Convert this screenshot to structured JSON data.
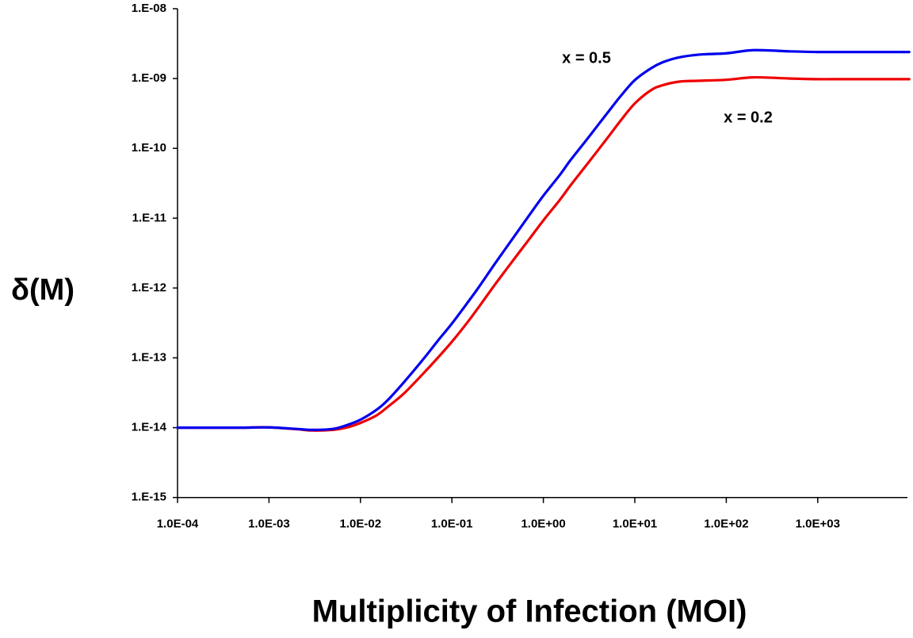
{
  "chart_data": {
    "type": "line",
    "title": "",
    "xlabel": "Multiplicity of Infection (MOI)",
    "ylabel": "δ(M)",
    "x_scale": "log",
    "y_scale": "log",
    "xlim": [
      0.0001,
      10000
    ],
    "ylim": [
      1e-15,
      1e-08
    ],
    "grid": false,
    "legend": "none",
    "x_ticks": [
      0.0001,
      0.001,
      0.01,
      0.1,
      1,
      10,
      100,
      1000
    ],
    "x_tick_labels": [
      "1.0E-04",
      "1.0E-03",
      "1.0E-02",
      "1.0E-01",
      "1.0E+00",
      "1.0E+01",
      "1.0E+02",
      "1.0E+03"
    ],
    "y_ticks": [
      1e-08,
      1e-09,
      1e-10,
      1e-11,
      1e-12,
      1e-13,
      1e-14,
      1e-15
    ],
    "y_tick_labels": [
      "1.E-08",
      "1.E-09",
      "1.E-10",
      "1.E-11",
      "1.E-12",
      "1.E-13",
      "1.E-14",
      "1.E-15"
    ],
    "series": [
      {
        "label": "x = 0.5",
        "color": "#0000ee",
        "x": [
          0.0001,
          0.0002,
          0.0005,
          0.001,
          0.002,
          0.003,
          0.005,
          0.007,
          0.01,
          0.015,
          0.02,
          0.03,
          0.05,
          0.07,
          0.1,
          0.15,
          0.2,
          0.3,
          0.5,
          0.7,
          1,
          1.5,
          2,
          3,
          5,
          7,
          10,
          15,
          20,
          30,
          50,
          100,
          200,
          500,
          1000,
          2000,
          10000
        ],
        "y": [
          1e-14,
          1e-14,
          1e-14,
          1.01e-14,
          9.6e-15,
          9.3e-15,
          9.6e-15,
          1.08e-14,
          1.3e-14,
          1.8e-14,
          2.5e-14,
          4.5e-14,
          1e-13,
          1.75e-13,
          3.1e-13,
          6.3e-13,
          1.06e-12,
          2.3e-12,
          5.9e-12,
          1.1e-11,
          2.1e-11,
          4.1e-11,
          6.9e-11,
          1.35e-10,
          3.2e-10,
          5.6e-10,
          9.5e-10,
          1.4e-09,
          1.7e-09,
          2e-09,
          2.2e-09,
          2.3e-09,
          2.55e-09,
          2.45e-09,
          2.4e-09,
          2.4e-09,
          2.4e-09
        ]
      },
      {
        "label": "x = 0.2",
        "color": "#ee0000",
        "x": [
          0.0001,
          0.0002,
          0.0005,
          0.001,
          0.002,
          0.003,
          0.005,
          0.007,
          0.01,
          0.015,
          0.02,
          0.03,
          0.05,
          0.07,
          0.1,
          0.15,
          0.2,
          0.3,
          0.5,
          0.7,
          1,
          1.5,
          2,
          3,
          5,
          7,
          10,
          15,
          20,
          30,
          50,
          100,
          200,
          500,
          1000,
          2000,
          10000
        ],
        "y": [
          1e-14,
          1e-14,
          1e-14,
          1.01e-14,
          9.5e-15,
          9.1e-15,
          9.3e-15,
          1e-14,
          1.17e-14,
          1.5e-14,
          2e-14,
          3.1e-14,
          6.2e-14,
          1e-13,
          1.7e-13,
          3.3e-13,
          5.5e-13,
          1.15e-12,
          2.8e-12,
          5e-12,
          9.3e-12,
          1.8e-11,
          3e-11,
          5.9e-11,
          1.4e-10,
          2.5e-10,
          4.4e-10,
          6.8e-10,
          8e-10,
          9e-10,
          9.3e-10,
          9.6e-10,
          1.04e-09,
          1e-09,
          9.8e-10,
          9.8e-10,
          9.8e-10
        ]
      }
    ]
  }
}
